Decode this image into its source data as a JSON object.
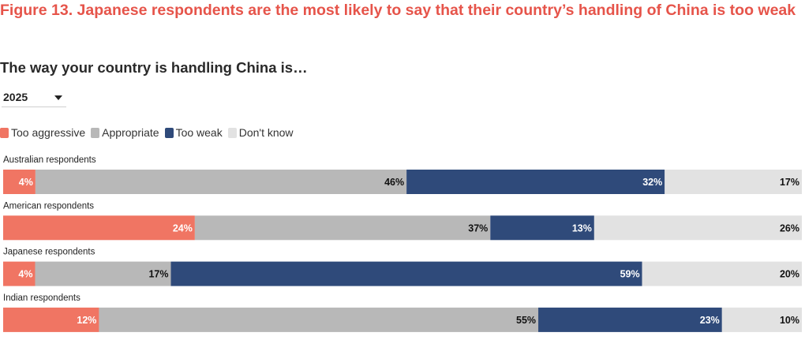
{
  "header": {
    "figure_title": "Figure 13. Japanese respondents are the most likely to say that their country’s handling of China is too weak",
    "subtitle": "The way your country is handling China is…"
  },
  "year_select": {
    "value": "2025"
  },
  "colors": {
    "too_aggressive": "#f07563",
    "appropriate": "#b8b8b8",
    "too_weak": "#2f4a7a",
    "dont_know": "#e2e2e2",
    "title": "#e6544a"
  },
  "chart_data": {
    "type": "bar",
    "orientation": "horizontal",
    "stacked": true,
    "categories": [
      "Australian respondents",
      "American respondents",
      "Japanese respondents",
      "Indian respondents"
    ],
    "series": [
      {
        "name": "Too aggressive",
        "values": [
          4,
          24,
          4,
          12
        ],
        "color": "#f07563"
      },
      {
        "name": "Appropriate",
        "values": [
          46,
          37,
          17,
          55
        ],
        "color": "#b8b8b8"
      },
      {
        "name": "Too weak",
        "values": [
          32,
          13,
          59,
          23
        ],
        "color": "#2f4a7a"
      },
      {
        "name": "Don't know",
        "values": [
          17,
          26,
          20,
          10
        ],
        "color": "#e2e2e2"
      }
    ],
    "value_suffix": "%",
    "legend_position": "top-left",
    "grid": false
  }
}
